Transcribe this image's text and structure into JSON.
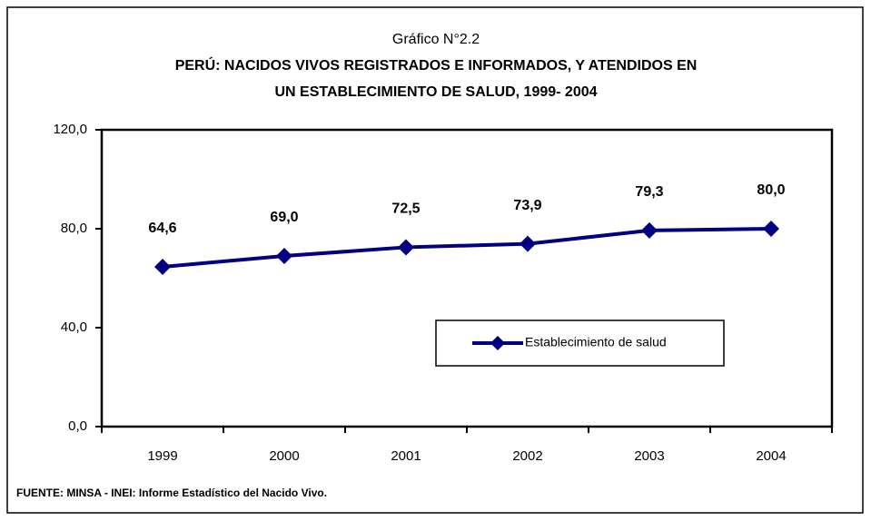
{
  "chart_data": {
    "type": "line",
    "title": "Gráfico N°2.2",
    "subtitle": [
      "PERÚ: NACIDOS VIVOS REGISTRADOS E INFORMADOS, Y ATENDIDOS EN",
      "UN ESTABLECIMIENTO DE SALUD, 1999- 2004"
    ],
    "categories": [
      "1999",
      "2000",
      "2001",
      "2002",
      "2003",
      "2004"
    ],
    "series": [
      {
        "name": "Establecimiento de salud",
        "color": "#000080",
        "values": [
          64.6,
          69.0,
          72.5,
          73.9,
          79.3,
          80.0
        ],
        "value_labels": [
          "64,6",
          "69,0",
          "72,5",
          "73,9",
          "79,3",
          "80,0"
        ]
      }
    ],
    "ylim": [
      0,
      120
    ],
    "yticks": [
      {
        "value": 0,
        "label": "0,0"
      },
      {
        "value": 40,
        "label": "40,0"
      },
      {
        "value": 80,
        "label": "80,0"
      },
      {
        "value": 120,
        "label": "120,0"
      }
    ],
    "grid": false,
    "legend": "center",
    "source": "FUENTE: MINSA - INEI: Informe Estadístico del Nacido Vivo."
  }
}
